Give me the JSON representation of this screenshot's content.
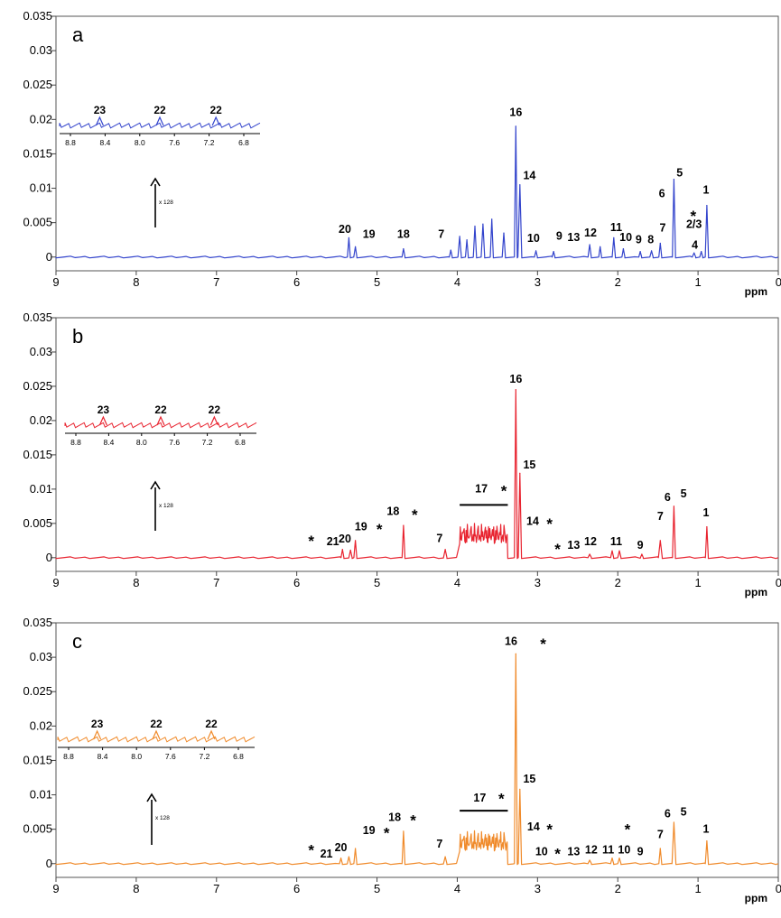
{
  "chart_data": [
    {
      "type": "line",
      "panel": "a",
      "color": "#3344cc",
      "x_axis": {
        "reversed": true,
        "xlim": [
          9,
          0
        ],
        "ticks": [
          "9",
          "8",
          "7",
          "6",
          "5",
          "4",
          "3",
          "2",
          "1",
          "0"
        ],
        "label": "ppm"
      },
      "y_axis": {
        "ylim": [
          -0.002,
          0.035
        ],
        "ticks": [
          "0",
          "0.005",
          "0.01",
          "0.015",
          "0.02",
          "0.025",
          "0.03",
          "0.035"
        ]
      },
      "peaks": [
        {
          "x": 5.35,
          "y": 0.0028
        },
        {
          "x": 5.27,
          "y": 0.0015
        },
        {
          "x": 4.67,
          "y": 0.0012
        },
        {
          "x": 4.08,
          "y": 0.001
        },
        {
          "x": 3.97,
          "y": 0.003
        },
        {
          "x": 3.88,
          "y": 0.0025
        },
        {
          "x": 3.78,
          "y": 0.0045
        },
        {
          "x": 3.68,
          "y": 0.0048
        },
        {
          "x": 3.57,
          "y": 0.0055
        },
        {
          "x": 3.42,
          "y": 0.0035
        },
        {
          "x": 3.27,
          "y": 0.019
        },
        {
          "x": 3.22,
          "y": 0.0105
        },
        {
          "x": 3.02,
          "y": 0.0009
        },
        {
          "x": 2.8,
          "y": 0.0008
        },
        {
          "x": 2.35,
          "y": 0.0018
        },
        {
          "x": 2.22,
          "y": 0.0015
        },
        {
          "x": 2.05,
          "y": 0.0028
        },
        {
          "x": 1.93,
          "y": 0.0012
        },
        {
          "x": 1.72,
          "y": 0.0008
        },
        {
          "x": 1.58,
          "y": 0.0009
        },
        {
          "x": 1.47,
          "y": 0.002
        },
        {
          "x": 1.3,
          "y": 0.0113
        },
        {
          "x": 1.05,
          "y": 0.0006
        },
        {
          "x": 0.96,
          "y": 0.0008
        },
        {
          "x": 0.89,
          "y": 0.0075
        }
      ],
      "labels": [
        {
          "text": "20",
          "x": 5.4,
          "y": 0.0035
        },
        {
          "text": "19",
          "x": 5.1,
          "y": 0.0028
        },
        {
          "text": "18",
          "x": 4.67,
          "y": 0.0028
        },
        {
          "text": "7",
          "x": 4.2,
          "y": 0.0028
        },
        {
          "text": "16",
          "x": 3.27,
          "y": 0.0205
        },
        {
          "text": "14",
          "x": 3.1,
          "y": 0.0113
        },
        {
          "text": "10",
          "x": 3.05,
          "y": 0.0022
        },
        {
          "text": "9",
          "x": 2.73,
          "y": 0.0025
        },
        {
          "text": "13",
          "x": 2.55,
          "y": 0.0023
        },
        {
          "text": "12",
          "x": 2.34,
          "y": 0.003
        },
        {
          "text": "11",
          "x": 2.02,
          "y": 0.0038
        },
        {
          "text": "10",
          "x": 1.9,
          "y": 0.0023
        },
        {
          "text": "9",
          "x": 1.74,
          "y": 0.002
        },
        {
          "text": "8",
          "x": 1.59,
          "y": 0.002
        },
        {
          "text": "7",
          "x": 1.44,
          "y": 0.0037
        },
        {
          "text": "6",
          "x": 1.45,
          "y": 0.0087
        },
        {
          "text": "5",
          "x": 1.23,
          "y": 0.0117
        },
        {
          "text": "2/3",
          "x": 1.05,
          "y": 0.0042
        },
        {
          "text": "4",
          "x": 1.04,
          "y": 0.0012
        },
        {
          "text": "1",
          "x": 0.9,
          "y": 0.0092
        }
      ],
      "stars": [
        {
          "x": 1.06,
          "y": 0.006
        }
      ],
      "inset": {
        "ticks": [
          "8.8",
          "8.4",
          "8.0",
          "7.6",
          "7.2",
          "6.8"
        ],
        "peak_labels": [
          "23",
          "22",
          "22"
        ],
        "scale_text": "x 128"
      }
    },
    {
      "type": "line",
      "panel": "b",
      "color": "#e8232f",
      "x_axis": {
        "reversed": true,
        "xlim": [
          9,
          0
        ],
        "ticks": [
          "9",
          "8",
          "7",
          "6",
          "5",
          "4",
          "3",
          "2",
          "1",
          "0"
        ],
        "label": "ppm"
      },
      "y_axis": {
        "ylim": [
          -0.002,
          0.035
        ],
        "ticks": [
          "0",
          "0.005",
          "0.01",
          "0.015",
          "0.02",
          "0.025",
          "0.03",
          "0.035"
        ]
      },
      "peaks": [
        {
          "x": 5.43,
          "y": 0.0012
        },
        {
          "x": 5.33,
          "y": 0.0011
        },
        {
          "x": 5.27,
          "y": 0.0025
        },
        {
          "x": 4.67,
          "y": 0.0047
        },
        {
          "x": 4.15,
          "y": 0.0012
        },
        {
          "x": 3.27,
          "y": 0.0245
        },
        {
          "x": 3.22,
          "y": 0.0123
        },
        {
          "x": 2.35,
          "y": 0.0005
        },
        {
          "x": 2.07,
          "y": 0.001
        },
        {
          "x": 1.98,
          "y": 0.001
        },
        {
          "x": 1.7,
          "y": 0.0005
        },
        {
          "x": 1.47,
          "y": 0.0025
        },
        {
          "x": 1.3,
          "y": 0.0075
        },
        {
          "x": 0.89,
          "y": 0.0045
        }
      ],
      "region_17": {
        "from": 3.97,
        "to": 3.37,
        "level": 0.0045
      },
      "labels": [
        {
          "text": "21",
          "x": 5.55,
          "y": 0.0018
        },
        {
          "text": "20",
          "x": 5.4,
          "y": 0.0022
        },
        {
          "text": "19",
          "x": 5.2,
          "y": 0.004
        },
        {
          "text": "18",
          "x": 4.8,
          "y": 0.0062
        },
        {
          "text": "7",
          "x": 4.22,
          "y": 0.0023
        },
        {
          "text": "17",
          "x": 3.7,
          "y": 0.0095
        },
        {
          "text": "16",
          "x": 3.27,
          "y": 0.0255
        },
        {
          "text": "15",
          "x": 3.1,
          "y": 0.013
        },
        {
          "text": "14",
          "x": 3.06,
          "y": 0.0048
        },
        {
          "text": "13",
          "x": 2.55,
          "y": 0.0013
        },
        {
          "text": "12",
          "x": 2.34,
          "y": 0.0018
        },
        {
          "text": "11",
          "x": 2.02,
          "y": 0.0018
        },
        {
          "text": "9",
          "x": 1.72,
          "y": 0.0013
        },
        {
          "text": "7",
          "x": 1.47,
          "y": 0.0055
        },
        {
          "text": "6",
          "x": 1.38,
          "y": 0.0083
        },
        {
          "text": "5",
          "x": 1.18,
          "y": 0.0088
        },
        {
          "text": "1",
          "x": 0.9,
          "y": 0.006
        }
      ],
      "stars": [
        {
          "x": 5.82,
          "y": 0.0025
        },
        {
          "x": 4.97,
          "y": 0.0042
        },
        {
          "x": 4.53,
          "y": 0.0063
        },
        {
          "x": 3.42,
          "y": 0.0098
        },
        {
          "x": 2.85,
          "y": 0.005
        },
        {
          "x": 2.75,
          "y": 0.0013
        }
      ],
      "inset": {
        "ticks": [
          "8.8",
          "8.4",
          "8.0",
          "7.6",
          "7.2",
          "6.8"
        ],
        "peak_labels": [
          "23",
          "22",
          "22"
        ],
        "scale_text": "x 128"
      }
    },
    {
      "type": "line",
      "panel": "c",
      "color": "#f08a2a",
      "x_axis": {
        "reversed": true,
        "xlim": [
          9,
          0
        ],
        "ticks": [
          "9",
          "8",
          "7",
          "6",
          "5",
          "4",
          "3",
          "2",
          "1",
          "0"
        ],
        "label": "ppm"
      },
      "y_axis": {
        "ylim": [
          -0.002,
          0.035
        ],
        "ticks": [
          "0",
          "0.005",
          "0.01",
          "0.015",
          "0.02",
          "0.025",
          "0.03",
          "0.035"
        ]
      },
      "peaks": [
        {
          "x": 5.45,
          "y": 0.0008
        },
        {
          "x": 5.35,
          "y": 0.001
        },
        {
          "x": 5.27,
          "y": 0.0022
        },
        {
          "x": 4.67,
          "y": 0.0047
        },
        {
          "x": 4.15,
          "y": 0.001
        },
        {
          "x": 3.27,
          "y": 0.0305
        },
        {
          "x": 3.22,
          "y": 0.0108
        },
        {
          "x": 2.35,
          "y": 0.0005
        },
        {
          "x": 2.07,
          "y": 0.0008
        },
        {
          "x": 1.98,
          "y": 0.0008
        },
        {
          "x": 1.47,
          "y": 0.0022
        },
        {
          "x": 1.3,
          "y": 0.006
        },
        {
          "x": 0.89,
          "y": 0.0033
        }
      ],
      "region_17": {
        "from": 3.97,
        "to": 3.37,
        "level": 0.004
      },
      "labels": [
        {
          "text": "21",
          "x": 5.63,
          "y": 0.0009
        },
        {
          "text": "20",
          "x": 5.45,
          "y": 0.0018
        },
        {
          "text": "19",
          "x": 5.1,
          "y": 0.0043
        },
        {
          "text": "18",
          "x": 4.78,
          "y": 0.0062
        },
        {
          "text": "7",
          "x": 4.22,
          "y": 0.0023
        },
        {
          "text": "17",
          "x": 3.72,
          "y": 0.009
        },
        {
          "text": "16",
          "x": 3.33,
          "y": 0.0318
        },
        {
          "text": "15",
          "x": 3.1,
          "y": 0.0118
        },
        {
          "text": "14",
          "x": 3.05,
          "y": 0.0048
        },
        {
          "text": "10",
          "x": 2.95,
          "y": 0.0012
        },
        {
          "text": "13",
          "x": 2.55,
          "y": 0.0012
        },
        {
          "text": "12",
          "x": 2.33,
          "y": 0.0015
        },
        {
          "text": "11",
          "x": 2.12,
          "y": 0.0015
        },
        {
          "text": "10",
          "x": 1.92,
          "y": 0.0015
        },
        {
          "text": "9",
          "x": 1.72,
          "y": 0.0012
        },
        {
          "text": "7",
          "x": 1.47,
          "y": 0.0037
        },
        {
          "text": "6",
          "x": 1.38,
          "y": 0.0067
        },
        {
          "text": "5",
          "x": 1.18,
          "y": 0.007
        },
        {
          "text": "1",
          "x": 0.9,
          "y": 0.0045
        }
      ],
      "stars": [
        {
          "x": 5.82,
          "y": 0.002
        },
        {
          "x": 4.88,
          "y": 0.0045
        },
        {
          "x": 4.55,
          "y": 0.0063
        },
        {
          "x": 3.45,
          "y": 0.0095
        },
        {
          "x": 2.85,
          "y": 0.005
        },
        {
          "x": 2.75,
          "y": 0.0015
        },
        {
          "x": 1.88,
          "y": 0.005
        },
        {
          "x": 2.93,
          "y": 0.032
        }
      ],
      "inset": {
        "ticks": [
          "8.8",
          "8.4",
          "8.0",
          "7.6",
          "7.2",
          "6.8"
        ],
        "peak_labels": [
          "23",
          "22",
          "22"
        ],
        "scale_text": "x 128"
      }
    }
  ]
}
